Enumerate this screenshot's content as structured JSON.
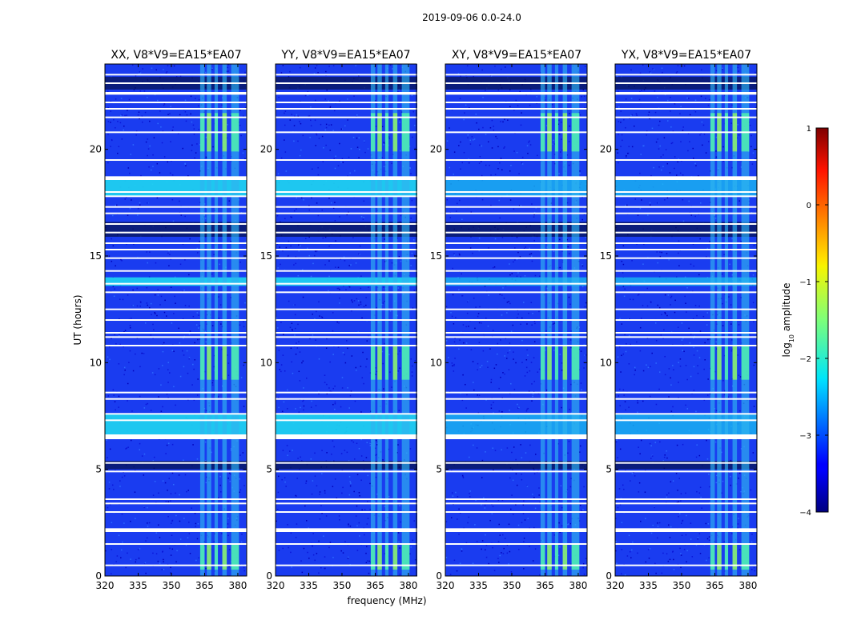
{
  "figure": {
    "suptitle": "2019-09-06 0.0-24.0"
  },
  "chart_data": {
    "type": "heatmap",
    "title": "2019-09-06 0.0-24.0",
    "xlabel": "frequency (MHz)",
    "ylabel": "UT (hours)",
    "xlim": [
      320,
      384
    ],
    "ylim": [
      0,
      24
    ],
    "xticks": [
      "320",
      "335",
      "350",
      "365",
      "380"
    ],
    "yticks": [
      "0",
      "5",
      "10",
      "15",
      "20"
    ],
    "colorbar": {
      "label": "log$_{10}$ amplitude",
      "label_main": "log",
      "label_sub": "10",
      "label_rest": " amplitude",
      "range": [
        -4,
        1
      ],
      "ticks": [
        "1",
        "0",
        "−1",
        "−2",
        "−3",
        "−4"
      ],
      "colormap": "jet"
    },
    "panels": [
      {
        "title": "XX, V8*V9=EA15*EA07",
        "polarization": "XX",
        "baseline": "V8*V9=EA15*EA07"
      },
      {
        "title": "YY, V8*V9=EA15*EA07",
        "polarization": "YY",
        "baseline": "V8*V9=EA15*EA07"
      },
      {
        "title": "XY, V8*V9=EA15*EA07",
        "polarization": "XY",
        "baseline": "V8*V9=EA15*EA07"
      },
      {
        "title": "YX, V8*V9=EA15*EA07",
        "polarization": "YX",
        "baseline": "V8*V9=EA15*EA07"
      }
    ],
    "flagged_ut_hours": [
      0.5,
      1.5,
      2.1,
      2.15,
      2.2,
      3.0,
      3.4,
      3.6,
      4.9,
      5.3,
      6.45,
      6.5,
      6.55,
      6.6,
      7.3,
      7.6,
      8.3,
      8.6,
      10.8,
      11.2,
      11.4,
      12.0,
      12.5,
      13.3,
      13.7,
      14.3,
      14.9,
      15.3,
      15.6,
      16.1,
      16.5,
      17.0,
      17.3,
      17.8,
      18.0,
      18.6,
      18.65,
      18.7,
      19.5,
      20.8,
      21.5,
      21.9,
      22.2,
      22.6,
      22.65,
      23.1,
      23.5
    ],
    "rfi_channels_mhz": [
      [
        363,
        365
      ],
      [
        366,
        368
      ],
      [
        369.5,
        371
      ],
      [
        373,
        375
      ],
      [
        377,
        380.5
      ]
    ],
    "rfi_band_ut_hours": [
      [
        0,
        24
      ]
    ],
    "bright_rfi_periods_ut_hours": [
      [
        0.3,
        1.5
      ],
      [
        9.2,
        10.8
      ],
      [
        19.9,
        21.7
      ]
    ],
    "elevated_noise_periods_ut_hours": [
      [
        6.6,
        7.6
      ],
      [
        13.6,
        14.0
      ],
      [
        17.8,
        18.6
      ]
    ],
    "low_noise_periods_ut_hours": [
      [
        5.0,
        5.4
      ],
      [
        15.9,
        16.6
      ],
      [
        22.8,
        23.4
      ]
    ]
  }
}
